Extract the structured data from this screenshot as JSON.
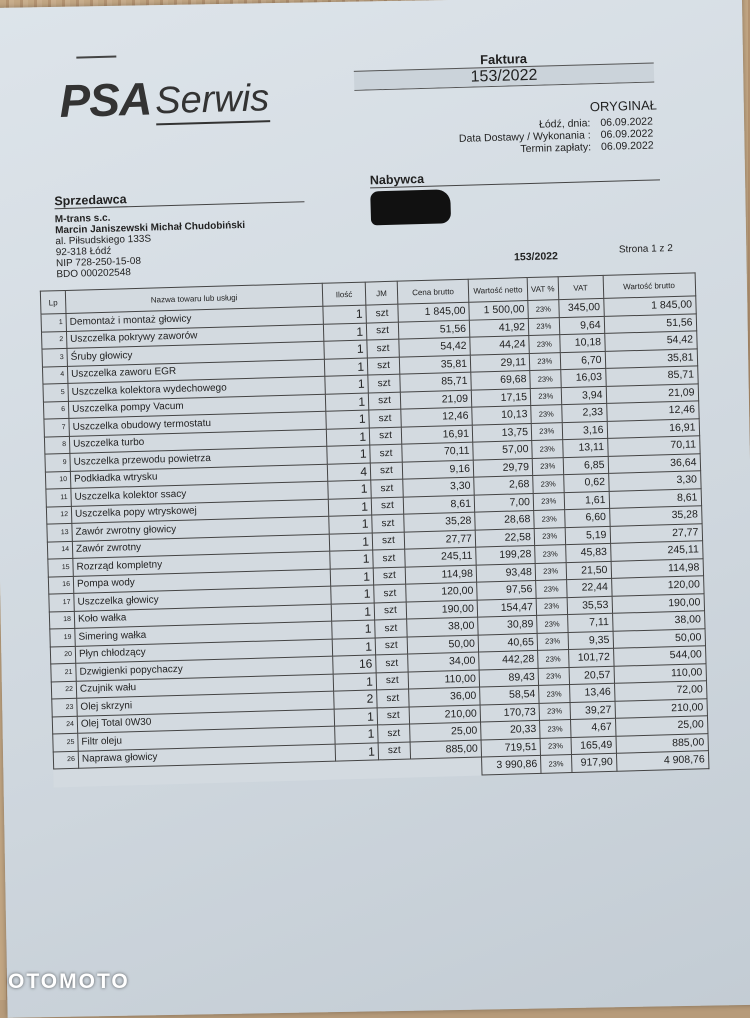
{
  "logo": {
    "brand": "PSA",
    "sub": "Serwis"
  },
  "header": {
    "doc_type": "Faktura",
    "number": "153/2022",
    "copy": "ORYGINAŁ",
    "dates": [
      {
        "label": "Łódź, dnia:",
        "value": "06.09.2022"
      },
      {
        "label": "Data Dostawy / Wykonania :",
        "value": "06.09.2022"
      },
      {
        "label": "Termin zapłaty:",
        "value": "06.09.2022"
      }
    ]
  },
  "seller": {
    "title": "Sprzedawca",
    "lines": [
      "M-trans s.c.",
      "Marcin Janiszewski  Michał Chudobiński",
      "al. Piłsudskiego 133S",
      "92-318 Łódź",
      "NIP 728-250-15-08",
      "BDO 000202548"
    ]
  },
  "buyer": {
    "title": "Nabywca"
  },
  "doc_number": "153/2022",
  "page": "Strona 1 z 2",
  "table": {
    "headers": [
      "Lp",
      "Nazwa towaru lub usługi",
      "Ilość",
      "JM",
      "Cena brutto",
      "Wartość netto",
      "VAT %",
      "VAT",
      "Wartość brutto"
    ],
    "rows": [
      [
        "1",
        "Demontaż i montaż głowicy",
        "1",
        "szt",
        "1 845,00",
        "1 500,00",
        "23%",
        "345,00",
        "1 845,00"
      ],
      [
        "2",
        "Uszczelka pokrywy zaworów",
        "1",
        "szt",
        "51,56",
        "41,92",
        "23%",
        "9,64",
        "51,56"
      ],
      [
        "3",
        "Śruby głowicy",
        "1",
        "szt",
        "54,42",
        "44,24",
        "23%",
        "10,18",
        "54,42"
      ],
      [
        "4",
        "Uszczelka zaworu EGR",
        "1",
        "szt",
        "35,81",
        "29,11",
        "23%",
        "6,70",
        "35,81"
      ],
      [
        "5",
        "Uszczelka kolektora wydechowego",
        "1",
        "szt",
        "85,71",
        "69,68",
        "23%",
        "16,03",
        "85,71"
      ],
      [
        "6",
        "Uszczelka pompy Vacum",
        "1",
        "szt",
        "21,09",
        "17,15",
        "23%",
        "3,94",
        "21,09"
      ],
      [
        "7",
        "Uszczelka obudowy termostatu",
        "1",
        "szt",
        "12,46",
        "10,13",
        "23%",
        "2,33",
        "12,46"
      ],
      [
        "8",
        "Uszczelka turbo",
        "1",
        "szt",
        "16,91",
        "13,75",
        "23%",
        "3,16",
        "16,91"
      ],
      [
        "9",
        "Uszczelka przewodu powietrza",
        "1",
        "szt",
        "70,11",
        "57,00",
        "23%",
        "13,11",
        "70,11"
      ],
      [
        "10",
        "Podkładka wtrysku",
        "4",
        "szt",
        "9,16",
        "29,79",
        "23%",
        "6,85",
        "36,64"
      ],
      [
        "11",
        "Uszczelka kolektor ssacy",
        "1",
        "szt",
        "3,30",
        "2,68",
        "23%",
        "0,62",
        "3,30"
      ],
      [
        "12",
        "Uszczelka popy wtryskowej",
        "1",
        "szt",
        "8,61",
        "7,00",
        "23%",
        "1,61",
        "8,61"
      ],
      [
        "13",
        "Zawór zwrotny głowicy",
        "1",
        "szt",
        "35,28",
        "28,68",
        "23%",
        "6,60",
        "35,28"
      ],
      [
        "14",
        "Zawór zwrotny",
        "1",
        "szt",
        "27,77",
        "22,58",
        "23%",
        "5,19",
        "27,77"
      ],
      [
        "15",
        "Rozrząd kompletny",
        "1",
        "szt",
        "245,11",
        "199,28",
        "23%",
        "45,83",
        "245,11"
      ],
      [
        "16",
        "Pompa wody",
        "1",
        "szt",
        "114,98",
        "93,48",
        "23%",
        "21,50",
        "114,98"
      ],
      [
        "17",
        "Uszczelka głowicy",
        "1",
        "szt",
        "120,00",
        "97,56",
        "23%",
        "22,44",
        "120,00"
      ],
      [
        "18",
        "Koło wałka",
        "1",
        "szt",
        "190,00",
        "154,47",
        "23%",
        "35,53",
        "190,00"
      ],
      [
        "19",
        "Simering wałka",
        "1",
        "szt",
        "38,00",
        "30,89",
        "23%",
        "7,11",
        "38,00"
      ],
      [
        "20",
        "Płyn chłodzący",
        "1",
        "szt",
        "50,00",
        "40,65",
        "23%",
        "9,35",
        "50,00"
      ],
      [
        "21",
        "Dzwigienki popychaczy",
        "16",
        "szt",
        "34,00",
        "442,28",
        "23%",
        "101,72",
        "544,00"
      ],
      [
        "22",
        "Czujnik wału",
        "1",
        "szt",
        "110,00",
        "89,43",
        "23%",
        "20,57",
        "110,00"
      ],
      [
        "23",
        "Olej skrzyni",
        "2",
        "szt",
        "36,00",
        "58,54",
        "23%",
        "13,46",
        "72,00"
      ],
      [
        "24",
        "Olej Total 0W30",
        "1",
        "szt",
        "210,00",
        "170,73",
        "23%",
        "39,27",
        "210,00"
      ],
      [
        "25",
        "Filtr oleju",
        "1",
        "szt",
        "25,00",
        "20,33",
        "23%",
        "4,67",
        "25,00"
      ],
      [
        "26",
        "Naprawa głowicy",
        "1",
        "szt",
        "885,00",
        "719,51",
        "23%",
        "165,49",
        "885,00"
      ]
    ],
    "totals": {
      "netto": "3 990,86",
      "vat_rate": "23%",
      "vat": "917,90",
      "brutto": "4 908,76"
    }
  },
  "watermark": "OTOMOTO"
}
